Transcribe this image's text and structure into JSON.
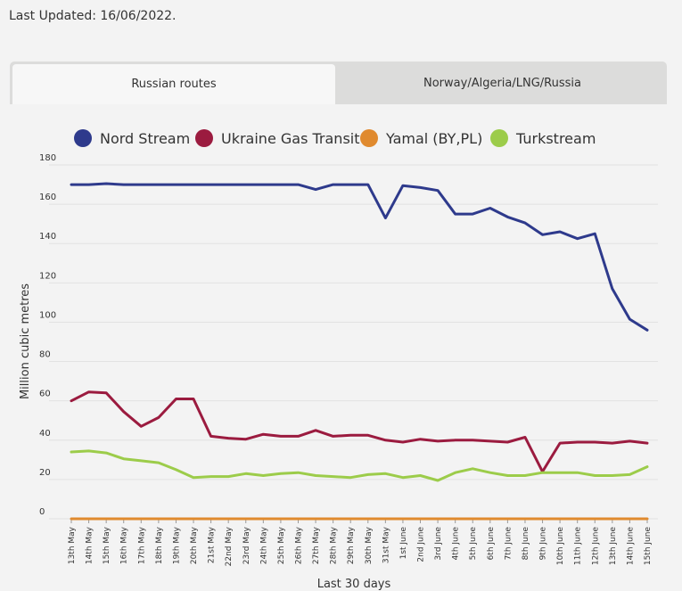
{
  "header": {
    "last_updated": "Last Updated: 16/06/2022."
  },
  "tabs": [
    {
      "label": "Russian routes",
      "active": true
    },
    {
      "label": "Norway/Algeria/LNG/Russia",
      "active": false
    }
  ],
  "chart_data": {
    "type": "line",
    "title": "",
    "xlabel": "Last 30 days",
    "ylabel": "Million cubic metres",
    "ylim": [
      0,
      180
    ],
    "yticks": [
      0,
      20,
      40,
      60,
      80,
      100,
      120,
      140,
      160,
      180
    ],
    "grid": true,
    "legend_position": "top",
    "categories": [
      "13th May",
      "14th May",
      "15th May",
      "16th May",
      "17th May",
      "18th May",
      "19th May",
      "20th May",
      "21st May",
      "22nd May",
      "23rd May",
      "24th May",
      "25th May",
      "26th May",
      "27th May",
      "28th May",
      "29th May",
      "30th May",
      "31st May",
      "1st June",
      "2nd June",
      "3rd June",
      "4th June",
      "5th June",
      "6th June",
      "7th June",
      "8th June",
      "9th June",
      "10th June",
      "11th June",
      "12th June",
      "13th June",
      "14th June",
      "15th June"
    ],
    "series": [
      {
        "name": "Nord Stream",
        "color": "#2e3a8c",
        "values": [
          170,
          170,
          170.5,
          170,
          170,
          170,
          170,
          170,
          170,
          170,
          170,
          170,
          170,
          170,
          167.5,
          170,
          170,
          170,
          153,
          169.5,
          168.5,
          167,
          155,
          155,
          158,
          153.5,
          150.5,
          144.5,
          146,
          142.5,
          145,
          117,
          101.5,
          96
        ]
      },
      {
        "name": "Ukraine Gas Transit",
        "color": "#9b1b3f",
        "values": [
          60,
          64.5,
          64,
          54.5,
          47,
          51.5,
          61,
          61,
          42,
          41,
          40.5,
          43,
          42,
          42,
          45,
          42,
          42.5,
          42.5,
          40,
          39,
          40.5,
          39.5,
          40,
          40,
          39.5,
          39,
          41.5,
          24,
          38.5,
          39,
          39,
          38.5,
          39.5,
          38.5
        ]
      },
      {
        "name": "Yamal (BY,PL)",
        "color": "#e08a2e",
        "values": [
          0,
          0,
          0,
          0,
          0,
          0,
          0,
          0,
          0,
          0,
          0,
          0,
          0,
          0,
          0,
          0,
          0,
          0,
          0,
          0,
          0,
          0,
          0,
          0,
          0,
          0,
          0,
          0,
          0,
          0,
          0,
          0,
          0,
          0
        ]
      },
      {
        "name": "Turkstream",
        "color": "#9ccc4a",
        "values": [
          34,
          34.5,
          33.5,
          30.5,
          29.5,
          28.5,
          25,
          21,
          21.5,
          21.5,
          23,
          22,
          23,
          23.5,
          22,
          21.5,
          21,
          22.5,
          23,
          21,
          22,
          19.5,
          23.5,
          25.5,
          23.5,
          22,
          22,
          23.5,
          23.5,
          23.5,
          22,
          22,
          22.5,
          26.5
        ]
      }
    ]
  }
}
